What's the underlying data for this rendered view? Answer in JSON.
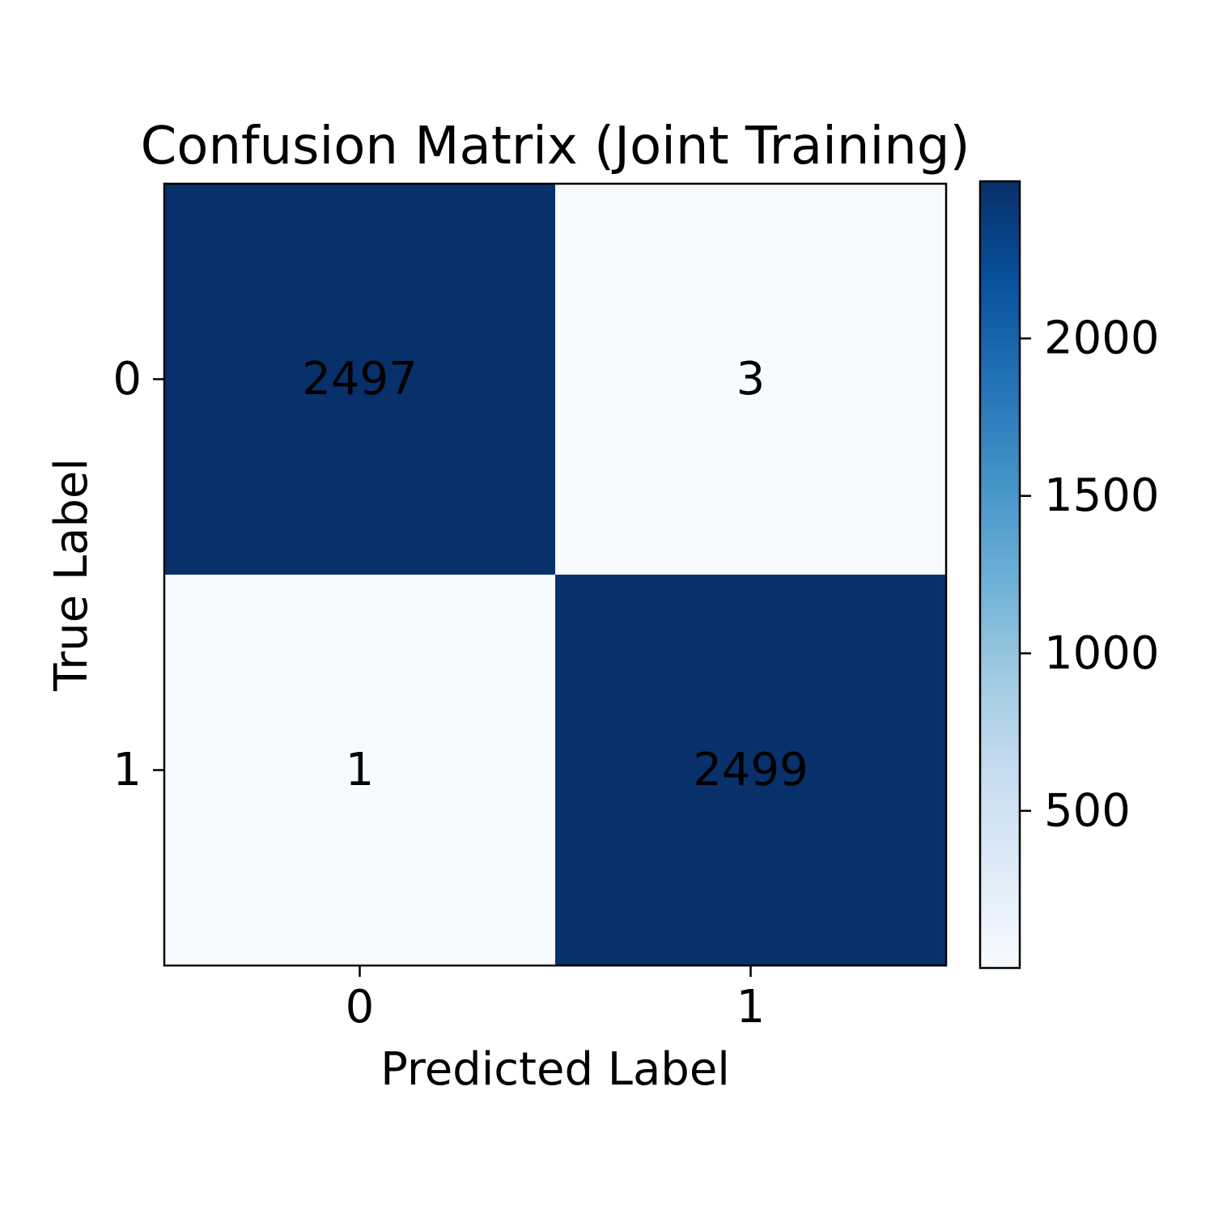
{
  "chart_data": {
    "type": "heatmap",
    "title": "Confusion Matrix (Joint Training)",
    "xlabel": "Predicted Label",
    "ylabel": "True Label",
    "x_categories": [
      "0",
      "1"
    ],
    "y_categories": [
      "0",
      "1"
    ],
    "values": [
      [
        2497,
        3
      ],
      [
        1,
        2499
      ]
    ],
    "colormap": "Blues",
    "colorbar": {
      "range": [
        1,
        2499
      ],
      "ticks": [
        500,
        1000,
        1500,
        2000
      ]
    },
    "grid": false
  }
}
